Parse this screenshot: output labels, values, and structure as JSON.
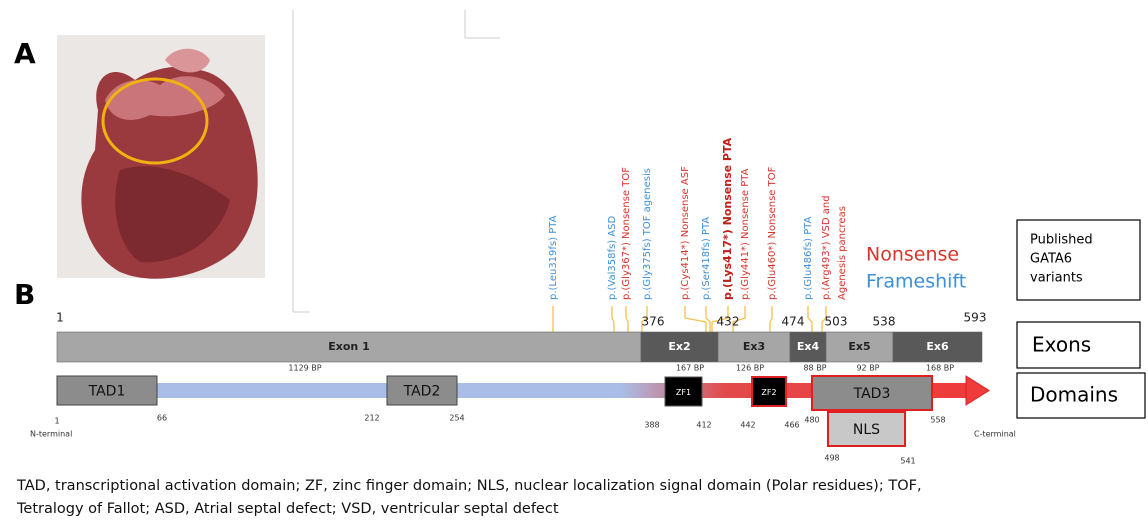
{
  "panel_a": {
    "label": "A"
  },
  "panel_b": {
    "label": "B"
  },
  "variants": [
    {
      "lines": [
        "p.(Leu319fs) PTA"
      ],
      "color": "#3d8fd6"
    },
    {
      "lines": [
        "p.(Val358fs) ASD"
      ],
      "color": "#3d8fd6"
    },
    {
      "lines": [
        "p.(Gly367*) Nonsense TOF"
      ],
      "color": "#d6352c"
    },
    {
      "lines": [
        "p.(Gly375fs) TOF agenesis"
      ],
      "color": "#3d8fd6"
    },
    {
      "lines": [
        "p.(Cys414*) Nonsense ASF"
      ],
      "color": "#d6352c"
    },
    {
      "lines": [
        "p.(Ser418fs) PTA"
      ],
      "color": "#3d8fd6"
    },
    {
      "lines": [
        "p.(Lys417*) Nonsense PTA"
      ],
      "color": "#c0201a",
      "bold": true
    },
    {
      "lines": [
        "p.(Gly441*) Nonsense PTA"
      ],
      "color": "#d6352c"
    },
    {
      "lines": [
        "p.(Glu460*) Nonsense TOF"
      ],
      "color": "#d6352c"
    },
    {
      "lines": [
        "p.(Glu486fs) PTA"
      ],
      "color": "#3d8fd6"
    },
    {
      "lines": [
        "p.(Arg493*) VSD and",
        "Agenesis pancreas"
      ],
      "color": "#d6352c"
    }
  ],
  "legend": {
    "nonsense": "Nonsense",
    "frameshift": "Frameshift"
  },
  "published_box": [
    "Published",
    "GATA6",
    "variants"
  ],
  "exons": {
    "box": "Exons",
    "boundaries": [
      1,
      376,
      432,
      474,
      503,
      538,
      593
    ],
    "items": [
      {
        "label": "Exon 1",
        "size": "1129 BP"
      },
      {
        "label": "Ex2",
        "size": "167 BP"
      },
      {
        "label": "Ex3",
        "size": "126 BP"
      },
      {
        "label": "Ex4",
        "size": "88 BP"
      },
      {
        "label": "Ex5",
        "size": "92 BP"
      },
      {
        "label": "Ex6",
        "size": "168 BP"
      }
    ]
  },
  "domains": {
    "box": "Domains",
    "n_terminal": "N-terminal",
    "c_terminal": "C-terminal",
    "items": [
      {
        "label": "TAD1",
        "start": 1,
        "end": 66
      },
      {
        "label": "TAD2",
        "start": 212,
        "end": 254
      },
      {
        "label": "ZF1",
        "start": 388,
        "end": 412
      },
      {
        "label": "ZF2",
        "start": 442,
        "end": 466
      },
      {
        "label": "TAD3",
        "start": 480,
        "end": 558
      },
      {
        "label": "NLS",
        "start": 498,
        "end": 541
      }
    ]
  },
  "caption": [
    "TAD, transcriptional activation domain; ZF, zinc finger domain; NLS, nuclear localization signal domain (Polar residues); TOF,",
    "Tetralogy of Fallot; ASD, Atrial septal defect; VSD, ventricular septal defect"
  ]
}
